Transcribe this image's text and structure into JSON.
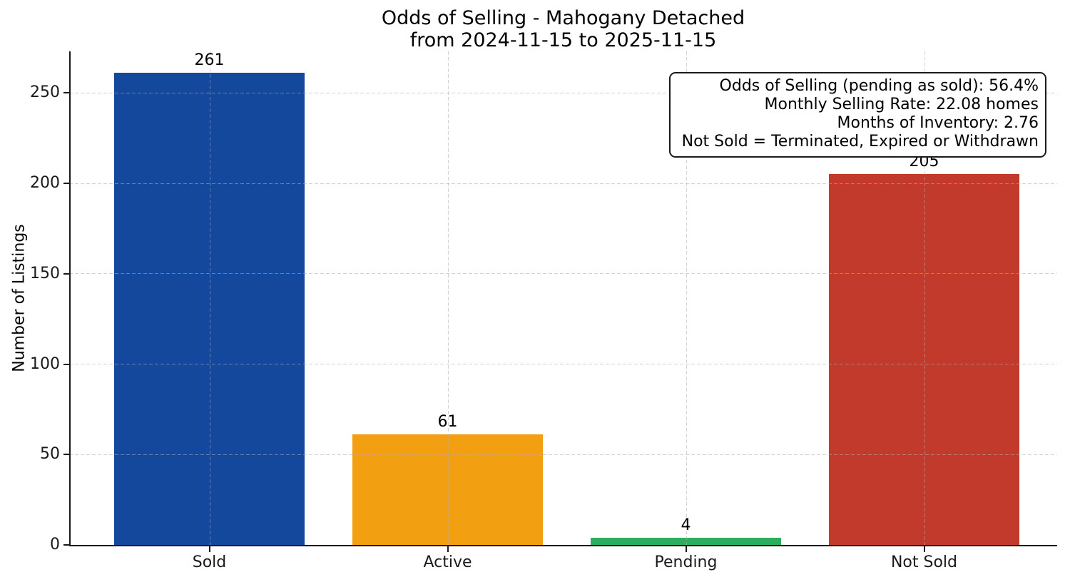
{
  "chart_data": {
    "type": "bar",
    "title": "Odds of Selling - Mahogany Detached\nfrom 2024-11-15 to 2025-11-15",
    "title_line1": "Odds of Selling - Mahogany Detached",
    "title_line2": "from 2024-11-15 to 2025-11-15",
    "xlabel": "",
    "ylabel": "Number of Listings",
    "categories": [
      "Sold",
      "Active",
      "Pending",
      "Not Sold"
    ],
    "values": [
      261,
      61,
      4,
      205
    ],
    "bar_colors": [
      "#14489C",
      "#F2A011",
      "#2BAE60",
      "#C23A2B"
    ],
    "yticks": [
      0,
      50,
      100,
      150,
      200,
      250
    ],
    "ylim": [
      0,
      273
    ],
    "grid": "dashed light-gray, horizontal and vertical, drawn above bars",
    "legend_position": "none",
    "spine_color": "#1a1a1a",
    "background_color": "#ffffff"
  },
  "annotation": {
    "lines": [
      "Odds of Selling (pending as sold): 56.4%",
      "Monthly Selling Rate: 22.08 homes",
      "Months of Inventory: 2.76",
      "Not Sold = Terminated, Expired or Withdrawn"
    ]
  }
}
